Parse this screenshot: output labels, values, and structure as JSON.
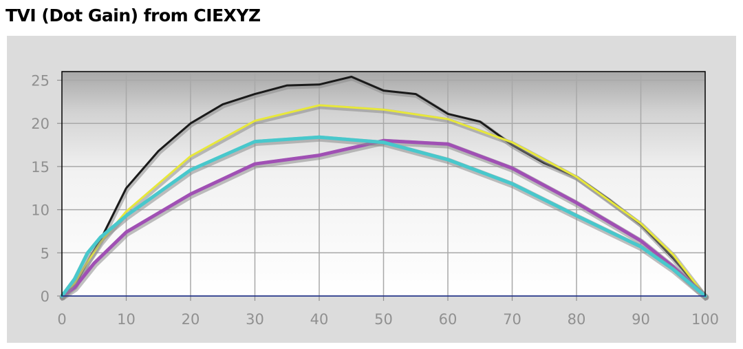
{
  "title": "TVI (Dot Gain) from CIEXYZ",
  "chart_data": {
    "type": "line",
    "title": "TVI (Dot Gain) from CIEXYZ",
    "xlabel": "",
    "ylabel": "",
    "xlim": [
      0,
      100
    ],
    "ylim": [
      0,
      26
    ],
    "x_ticks": [
      0,
      10,
      20,
      30,
      40,
      50,
      60,
      70,
      80,
      90,
      100
    ],
    "y_ticks": [
      0,
      5,
      10,
      15,
      20,
      25
    ],
    "grid": true,
    "series": [
      {
        "color": "#1a1a1a",
        "x": [
          0,
          2,
          4,
          6,
          10,
          15,
          20,
          25,
          30,
          35,
          40,
          45,
          50,
          55,
          60,
          65,
          70,
          75,
          80,
          85,
          90,
          95,
          100
        ],
        "y": [
          0,
          1.2,
          4,
          6.5,
          12.5,
          16.8,
          20,
          22.2,
          23.4,
          24.4,
          24.5,
          25.4,
          23.8,
          23.4,
          21.1,
          20.2,
          17.5,
          15.4,
          13.8,
          11.2,
          8.3,
          4.4,
          0
        ]
      },
      {
        "color": "#e8e83a",
        "x": [
          0,
          2,
          4,
          6,
          10,
          20,
          30,
          40,
          50,
          60,
          70,
          80,
          90,
          95,
          100
        ],
        "y": [
          0,
          1.5,
          4,
          6.2,
          9.8,
          16.2,
          20.3,
          22.1,
          21.6,
          20.5,
          17.8,
          13.8,
          8.4,
          4.8,
          0
        ]
      },
      {
        "color": "#a050b4",
        "x": [
          0,
          2,
          5,
          10,
          20,
          30,
          40,
          50,
          60,
          70,
          80,
          90,
          95,
          100
        ],
        "y": [
          0,
          1,
          3.8,
          7.4,
          11.8,
          15.3,
          16.3,
          18,
          17.6,
          14.8,
          10.8,
          6.4,
          3.4,
          0
        ]
      },
      {
        "color": "#48c8cc",
        "x": [
          0,
          2,
          4,
          6,
          10,
          20,
          30,
          40,
          50,
          60,
          70,
          80,
          90,
          95,
          100
        ],
        "y": [
          0,
          2,
          5,
          6.8,
          9.3,
          14.6,
          17.9,
          18.4,
          17.8,
          15.8,
          13,
          9.3,
          5.7,
          3.1,
          0
        ]
      }
    ]
  }
}
